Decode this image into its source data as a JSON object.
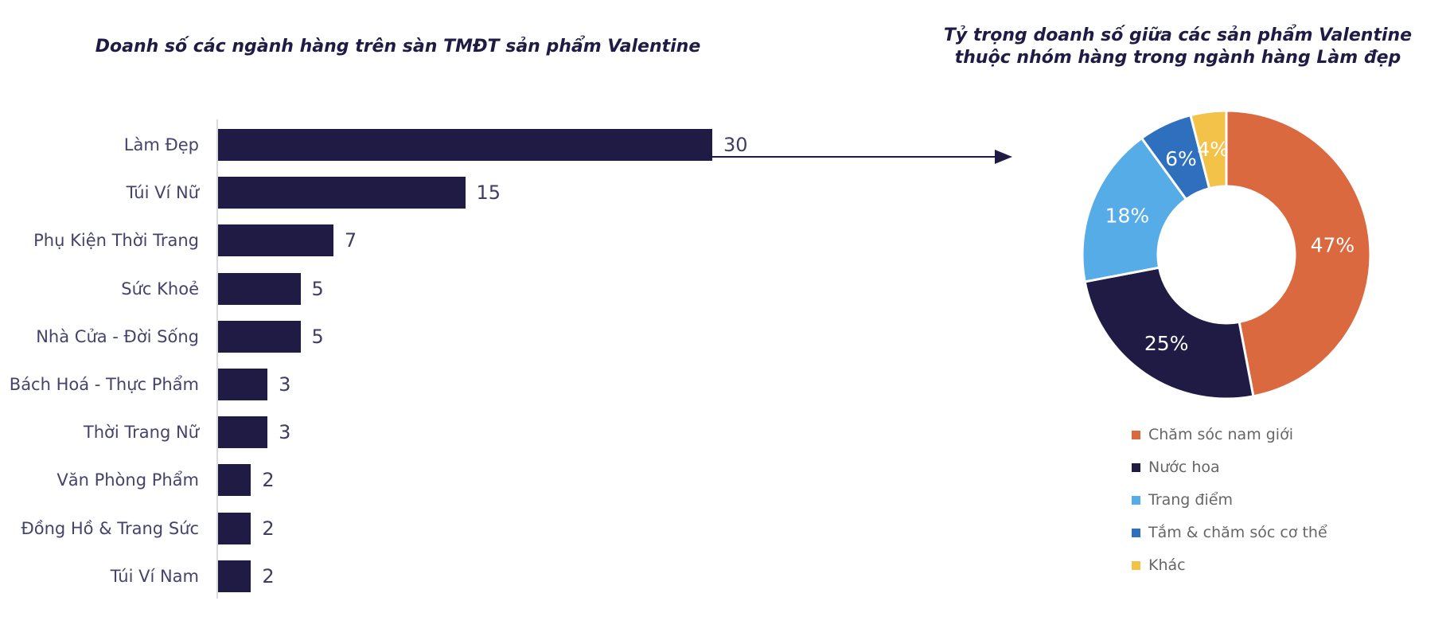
{
  "page": {
    "background": "#FFFFFF"
  },
  "colors": {
    "title": "#1F1B45",
    "axis_line": "#D9D9D9",
    "category_label": "#45436B",
    "value_label": "#3F3D63",
    "arrow": "#1F1B45",
    "percent_label": "#FFFFFF",
    "legend_text": "#666666"
  },
  "chart_data": [
    {
      "type": "bar",
      "orientation": "horizontal",
      "title": "Doanh số các ngành hàng trên sàn TMĐT sản phẩm Valentine",
      "categories": [
        "Làm Đẹp",
        "Túi Ví Nữ",
        "Phụ Kiện Thời Trang",
        "Sức Khoẻ",
        "Nhà Cửa - Đời Sống",
        "Bách Hoá - Thực Phẩm",
        "Thời Trang Nữ",
        "Văn Phòng Phẩm",
        "Đồng Hồ & Trang Sức",
        "Túi Ví Nam"
      ],
      "values": [
        30,
        15,
        7,
        5,
        5,
        3,
        3,
        2,
        2,
        2
      ],
      "xlim": [
        0,
        30
      ],
      "bar_color": "#1F1B45",
      "data_labels": true,
      "grid": false,
      "annotation": {
        "type": "arrow",
        "from": "Làm Đẹp bar",
        "to": "donut chart"
      }
    },
    {
      "type": "pie",
      "donut": true,
      "title": "Tỷ trọng doanh số giữa các sản phẩm Valentine thuộc nhóm hàng trong ngành hàng Làm đẹp",
      "title_lines": [
        "Tỷ trọng doanh số giữa các sản phẩm Valentine",
        "thuộc nhóm hàng trong ngành hàng Làm đẹp"
      ],
      "start_angle_deg": 0,
      "direction": "clockwise",
      "legend_position": "bottom",
      "segments": [
        {
          "label": "Chăm sóc nam giới",
          "value": 47,
          "percent_label": "47%",
          "color": "#DB6940"
        },
        {
          "label": "Nước hoa",
          "value": 25,
          "percent_label": "25%",
          "color": "#1F1B45"
        },
        {
          "label": "Trang điểm",
          "value": 18,
          "percent_label": "18%",
          "color": "#55ACE6"
        },
        {
          "label": "Tắm & chăm sóc cơ thể",
          "value": 6,
          "percent_label": "6%",
          "color": "#2E6FBE"
        },
        {
          "label": "Khác",
          "value": 4,
          "percent_label": "4%",
          "color": "#F2C249"
        }
      ]
    }
  ]
}
